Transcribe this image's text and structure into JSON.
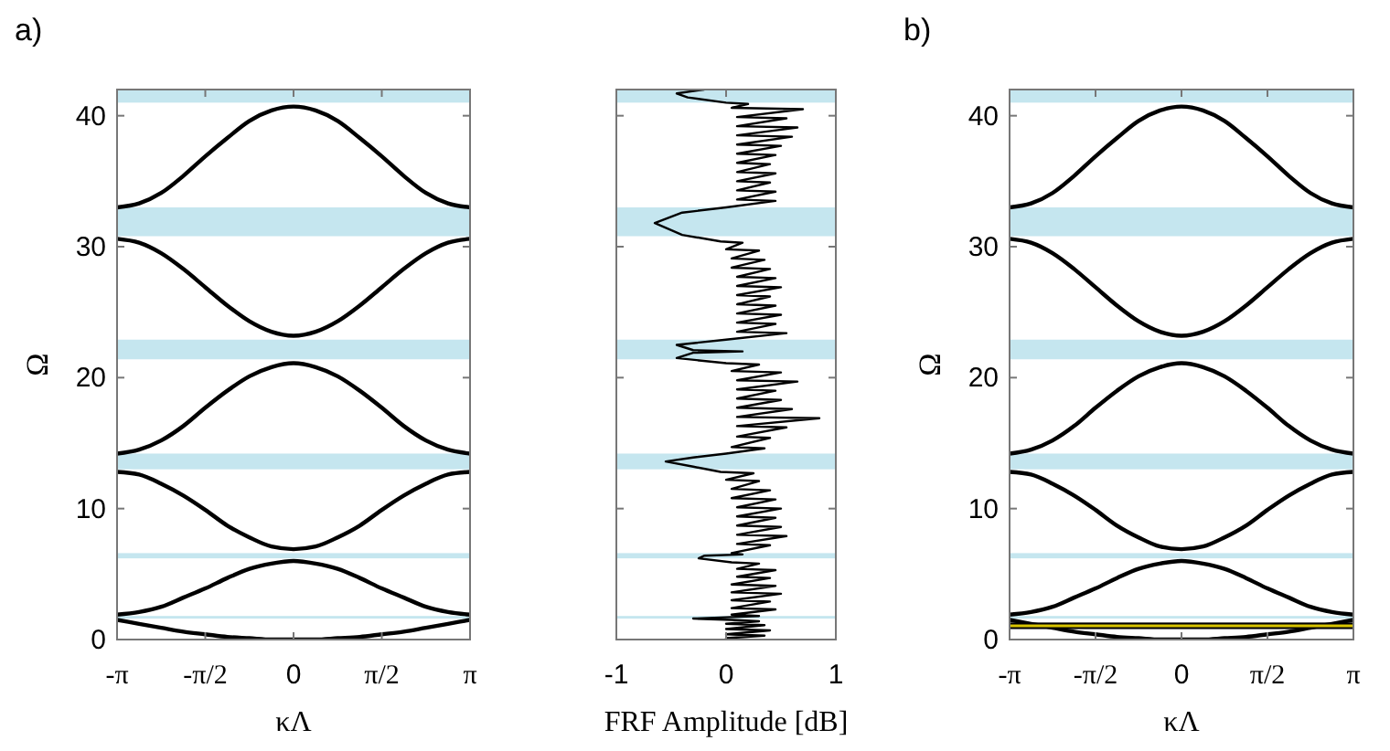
{
  "chart_data": [
    {
      "type": "line",
      "title": "a)",
      "xlabel": "κΛ",
      "ylabel": "Ω",
      "xlim": [
        -3.1416,
        3.1416
      ],
      "xticks": [
        {
          "value": -3.1416,
          "label": "-π"
        },
        {
          "value": -1.5708,
          "label": "-π/2"
        },
        0,
        {
          "value": 1.5708,
          "label": "π/2"
        },
        {
          "value": 3.1416,
          "label": "π"
        }
      ],
      "ylim": [
        0,
        42
      ],
      "yticks": [
        0,
        10,
        20,
        30,
        40
      ],
      "grid": false,
      "x": [
        -3.1416,
        -2.7489,
        -2.3562,
        -1.9635,
        -1.5708,
        -1.1781,
        -0.7854,
        -0.3927,
        0,
        0.3927,
        0.7854,
        1.1781,
        1.5708,
        1.9635,
        2.3562,
        2.7489,
        3.1416
      ],
      "series": [
        {
          "color": "#000000",
          "values": [
            1.5,
            1.2,
            0.9,
            0.6,
            0.4,
            0.2,
            0.1,
            0,
            0,
            0,
            0.1,
            0.2,
            0.4,
            0.6,
            0.9,
            1.2,
            1.5
          ]
        },
        {
          "color": "#000000",
          "values": [
            1.9,
            2.1,
            2.5,
            3.2,
            3.9,
            4.7,
            5.4,
            5.8,
            6,
            5.8,
            5.4,
            4.7,
            3.9,
            3.2,
            2.5,
            2.1,
            1.9
          ]
        },
        {
          "color": "#000000",
          "values": [
            12.8,
            12.6,
            11.9,
            11,
            9.9,
            8.7,
            7.8,
            7.1,
            6.9,
            7.1,
            7.8,
            8.7,
            9.9,
            11,
            11.9,
            12.6,
            12.8
          ]
        },
        {
          "color": "#000000",
          "values": [
            14.2,
            14.5,
            15.2,
            16.3,
            17.7,
            19,
            20.1,
            20.8,
            21.1,
            20.8,
            20.1,
            19,
            17.7,
            16.3,
            15.2,
            14.5,
            14.2
          ]
        },
        {
          "color": "#000000",
          "values": [
            30.6,
            30.3,
            29.5,
            28.3,
            26.9,
            25.5,
            24.3,
            23.5,
            23.2,
            23.5,
            24.3,
            25.5,
            26.9,
            28.3,
            29.5,
            30.3,
            30.6
          ]
        },
        {
          "color": "#000000",
          "values": [
            33,
            33.3,
            34.1,
            35.4,
            36.9,
            38.3,
            39.6,
            40.4,
            40.7,
            40.4,
            39.6,
            38.3,
            36.9,
            35.4,
            34.1,
            33.3,
            33
          ]
        }
      ],
      "bands": [
        {
          "axis": "y",
          "from": 41,
          "to": 42,
          "color": "#c5e6ef"
        },
        {
          "axis": "y",
          "from": 30.8,
          "to": 33,
          "color": "#c5e6ef"
        },
        {
          "axis": "y",
          "from": 21.4,
          "to": 22.9,
          "color": "#c5e6ef"
        },
        {
          "axis": "y",
          "from": 13,
          "to": 14.2,
          "color": "#c5e6ef"
        },
        {
          "axis": "y",
          "from": 6.2,
          "to": 6.6,
          "color": "#c5e6ef"
        },
        {
          "axis": "y",
          "from": 1.6,
          "to": 1.8,
          "color": "#c5e6ef"
        }
      ]
    },
    {
      "type": "line",
      "xlabel": "FRF Amplitude [dB]",
      "xlim": [
        -1,
        1
      ],
      "xticks": [
        -1,
        0,
        1
      ],
      "ylim": [
        0,
        42
      ],
      "yticks": [
        0,
        10,
        20,
        30,
        40
      ],
      "tick_labels": "x",
      "grid": false,
      "series": [
        {
          "color": "#000000",
          "x": [
            0.0,
            0.35,
            0.0,
            0.4,
            0.0,
            0.35,
            0.0,
            0.3,
            0.05,
            -0.3,
            0.0,
            0.3,
            0.05,
            0.45,
            0.05,
            0.4,
            0.05,
            0.5,
            0.05,
            0.45,
            0.05,
            0.4,
            0.1,
            0.45,
            0.1,
            0.3,
            0.05,
            -0.25,
            -0.2,
            0.15,
            0.05,
            0.4,
            0.1,
            0.55,
            0.1,
            0.5,
            0.1,
            0.45,
            0.1,
            0.5,
            0.1,
            0.45,
            0.05,
            0.4,
            0.05,
            0.3,
            0.0,
            0.25,
            -0.05,
            -0.3,
            -0.55,
            -0.3,
            0.0,
            0.35,
            0.05,
            0.4,
            0.1,
            0.55,
            0.1,
            0.85,
            0.1,
            0.6,
            0.1,
            0.5,
            0.1,
            0.45,
            0.1,
            0.65,
            0.1,
            0.5,
            0.05,
            0.3,
            0.0,
            -0.45,
            -0.3,
            0.15,
            -0.3,
            -0.45,
            0.0,
            0.55,
            0.1,
            0.45,
            0.1,
            0.5,
            0.1,
            0.45,
            0.1,
            0.4,
            0.1,
            0.5,
            0.1,
            0.45,
            0.1,
            0.4,
            0.05,
            0.35,
            0.05,
            0.3,
            0.0,
            0.15,
            -0.05,
            -0.4,
            -0.65,
            -0.4,
            0.0,
            0.45,
            0.1,
            0.45,
            0.1,
            0.4,
            0.1,
            0.45,
            0.1,
            0.4,
            0.1,
            0.45,
            0.1,
            0.5,
            0.1,
            0.6,
            0.1,
            0.65,
            0.1,
            0.55,
            0.1,
            0.7,
            0.05,
            0.2,
            0.0,
            -0.35,
            -0.45,
            -0.2
          ],
          "values": [
            0.1,
            0.3,
            0.4,
            0.7,
            0.8,
            1.1,
            1.2,
            1.4,
            1.5,
            1.6,
            1.7,
            1.8,
            1.9,
            2.3,
            2.4,
            2.9,
            3.0,
            3.5,
            3.6,
            4.1,
            4.2,
            4.7,
            4.8,
            5.3,
            5.4,
            5.8,
            5.9,
            6.2,
            6.4,
            6.5,
            6.6,
            7.2,
            7.3,
            7.9,
            8.0,
            8.6,
            8.7,
            9.3,
            9.4,
            10.0,
            10.1,
            10.7,
            10.8,
            11.4,
            11.5,
            12.1,
            12.2,
            12.7,
            12.8,
            13.2,
            13.6,
            13.9,
            14.2,
            14.6,
            14.7,
            15.4,
            15.5,
            16.2,
            16.3,
            16.9,
            17.0,
            17.6,
            17.7,
            18.3,
            18.4,
            19.0,
            19.1,
            19.7,
            19.8,
            20.4,
            20.5,
            21.0,
            21.1,
            21.5,
            21.9,
            22.0,
            22.1,
            22.5,
            22.9,
            23.4,
            23.5,
            24.1,
            24.2,
            24.8,
            24.9,
            25.5,
            25.6,
            26.2,
            26.3,
            26.9,
            27.0,
            27.6,
            27.7,
            28.3,
            28.4,
            29.0,
            29.1,
            29.7,
            29.8,
            30.3,
            30.4,
            30.9,
            31.8,
            32.6,
            33.0,
            33.5,
            33.6,
            34.2,
            34.3,
            34.9,
            35.0,
            35.6,
            35.7,
            36.3,
            36.4,
            37.0,
            37.1,
            37.7,
            37.8,
            38.4,
            38.5,
            39.1,
            39.2,
            39.8,
            39.9,
            40.5,
            40.6,
            40.9,
            41.0,
            41.4,
            41.7,
            42.0
          ]
        }
      ],
      "bands": [
        {
          "axis": "y",
          "from": 41,
          "to": 42,
          "color": "#c5e6ef"
        },
        {
          "axis": "y",
          "from": 30.8,
          "to": 33,
          "color": "#c5e6ef"
        },
        {
          "axis": "y",
          "from": 21.4,
          "to": 22.9,
          "color": "#c5e6ef"
        },
        {
          "axis": "y",
          "from": 13,
          "to": 14.2,
          "color": "#c5e6ef"
        },
        {
          "axis": "y",
          "from": 6.2,
          "to": 6.6,
          "color": "#c5e6ef"
        },
        {
          "axis": "y",
          "from": 1.6,
          "to": 1.8,
          "color": "#c5e6ef"
        }
      ]
    },
    {
      "type": "line",
      "title": "b)",
      "xlabel": "κΛ",
      "ylabel": "Ω",
      "xlim": [
        -3.1416,
        3.1416
      ],
      "xticks": [
        {
          "value": -3.1416,
          "label": "-π"
        },
        {
          "value": -1.5708,
          "label": "-π/2"
        },
        0,
        {
          "value": 1.5708,
          "label": "π/2"
        },
        {
          "value": 3.1416,
          "label": "π"
        }
      ],
      "ylim": [
        0,
        42
      ],
      "yticks": [
        0,
        10,
        20,
        30,
        40
      ],
      "grid": false,
      "x": [
        -3.1416,
        -2.7489,
        -2.3562,
        -1.9635,
        -1.5708,
        -1.1781,
        -0.7854,
        -0.3927,
        0,
        0.3927,
        0.7854,
        1.1781,
        1.5708,
        1.9635,
        2.3562,
        2.7489,
        3.1416
      ],
      "series": [
        {
          "color": "#000000",
          "values": [
            1.5,
            1.2,
            0.9,
            0.6,
            0.4,
            0.2,
            0.1,
            0,
            0,
            0,
            0.1,
            0.2,
            0.4,
            0.6,
            0.9,
            1.2,
            1.5
          ]
        },
        {
          "color": "#000000",
          "values": [
            1.9,
            2.1,
            2.5,
            3.2,
            3.9,
            4.7,
            5.4,
            5.8,
            6,
            5.8,
            5.4,
            4.7,
            3.9,
            3.2,
            2.5,
            2.1,
            1.9
          ]
        },
        {
          "color": "#000000",
          "values": [
            12.8,
            12.6,
            11.9,
            11,
            9.9,
            8.7,
            7.8,
            7.1,
            6.9,
            7.1,
            7.8,
            8.7,
            9.9,
            11,
            11.9,
            12.6,
            12.8
          ]
        },
        {
          "color": "#000000",
          "values": [
            14.2,
            14.5,
            15.2,
            16.3,
            17.7,
            19,
            20.1,
            20.8,
            21.1,
            20.8,
            20.1,
            19,
            17.7,
            16.3,
            15.2,
            14.5,
            14.2
          ]
        },
        {
          "color": "#000000",
          "values": [
            30.6,
            30.3,
            29.5,
            28.3,
            26.9,
            25.5,
            24.3,
            23.5,
            23.2,
            23.5,
            24.3,
            25.5,
            26.9,
            28.3,
            29.5,
            30.3,
            30.6
          ]
        },
        {
          "color": "#000000",
          "values": [
            33,
            33.3,
            34.1,
            35.4,
            36.9,
            38.3,
            39.6,
            40.4,
            40.7,
            40.4,
            39.6,
            38.3,
            36.9,
            35.4,
            34.1,
            33.3,
            33
          ]
        }
      ],
      "bands": [
        {
          "axis": "y",
          "from": 41,
          "to": 42,
          "color": "#c5e6ef"
        },
        {
          "axis": "y",
          "from": 30.8,
          "to": 33,
          "color": "#c5e6ef"
        },
        {
          "axis": "y",
          "from": 21.4,
          "to": 22.9,
          "color": "#c5e6ef"
        },
        {
          "axis": "y",
          "from": 13,
          "to": 14.2,
          "color": "#c5e6ef"
        },
        {
          "axis": "y",
          "from": 6.2,
          "to": 6.6,
          "color": "#c5e6ef"
        },
        {
          "axis": "y",
          "from": 1.6,
          "to": 1.8,
          "color": "#c5e6ef"
        },
        {
          "axis": "y",
          "from": 0.8,
          "to": 1.3,
          "color": "#000000"
        }
      ],
      "ref_lines": [
        {
          "axis": "y",
          "value": 1.05,
          "color": "#d8c400"
        }
      ]
    }
  ]
}
